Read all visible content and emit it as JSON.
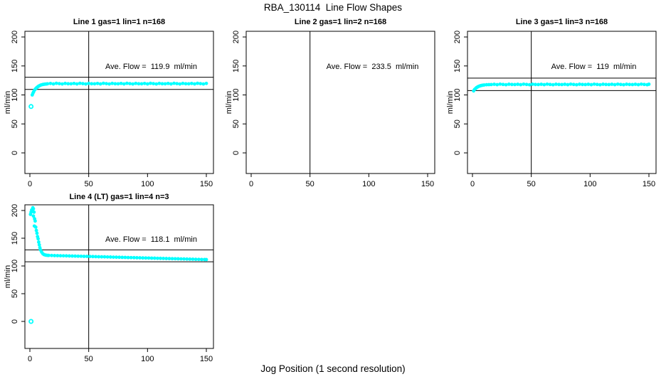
{
  "figure": {
    "main_title": "RBA_130114  Line Flow Shapes",
    "x_axis_label": "Jog Position (1 second resolution)",
    "background": "#ffffff"
  },
  "colors": {
    "points": "#00ffff",
    "axis": "#000000",
    "text": "#000000"
  },
  "chart_data": [
    {
      "type": "scatter",
      "title": "Line 1 gas=1 lin=1 n=168",
      "annotation": "Ave. Flow =  119.9  ml/min",
      "ave_flow": 119.9,
      "ylabel": "ml/min",
      "xlabel": "",
      "xticks": [
        0,
        50,
        100,
        150
      ],
      "yticks": [
        0,
        50,
        100,
        150,
        200
      ],
      "xlim": [
        -6,
        156
      ],
      "ylim": [
        -35,
        212
      ],
      "vline": 50,
      "hlines": [
        109.5,
        130.5
      ],
      "points": [
        [
          1,
          80
        ],
        [
          2,
          100
        ],
        [
          2.6,
          103
        ],
        [
          3.2,
          105.5
        ],
        [
          4,
          108.5
        ],
        [
          4.8,
          110.5
        ],
        [
          5.6,
          112.2
        ],
        [
          6.4,
          113.6
        ],
        [
          7.2,
          114.8
        ],
        [
          8,
          115.8
        ],
        [
          9,
          116.8
        ],
        [
          10,
          117.5
        ],
        [
          11,
          118
        ],
        [
          12,
          118.4
        ],
        [
          13,
          118.7
        ],
        [
          14,
          118.9
        ],
        [
          15,
          119.2
        ],
        [
          17.5,
          119.8
        ],
        [
          20,
          119.0
        ],
        [
          22.5,
          120.1
        ],
        [
          25,
          119.5
        ],
        [
          27.5,
          118.9
        ],
        [
          30,
          119.9
        ],
        [
          32.5,
          119.3
        ],
        [
          35,
          119.2
        ],
        [
          37.5,
          119.8
        ],
        [
          40,
          119.0
        ],
        [
          42.5,
          120.1
        ],
        [
          45,
          119.5
        ],
        [
          47.5,
          118.9
        ],
        [
          50,
          119.9
        ],
        [
          52.5,
          119.3
        ],
        [
          55,
          119.2
        ],
        [
          57.5,
          119.8
        ],
        [
          60,
          119.0
        ],
        [
          62.5,
          120.1
        ],
        [
          65,
          119.5
        ],
        [
          67.5,
          118.9
        ],
        [
          70,
          119.9
        ],
        [
          72.5,
          119.3
        ],
        [
          75,
          119.2
        ],
        [
          77.5,
          119.8
        ],
        [
          80,
          119.0
        ],
        [
          82.5,
          120.1
        ],
        [
          85,
          119.5
        ],
        [
          87.5,
          118.9
        ],
        [
          90,
          119.9
        ],
        [
          92.5,
          119.3
        ],
        [
          95,
          119.2
        ],
        [
          97.5,
          119.8
        ],
        [
          100,
          119.0
        ],
        [
          102.5,
          120.1
        ],
        [
          105,
          119.5
        ],
        [
          107.5,
          118.9
        ],
        [
          110,
          119.9
        ],
        [
          112.5,
          119.3
        ],
        [
          115,
          119.2
        ],
        [
          117.5,
          119.8
        ],
        [
          120,
          119.0
        ],
        [
          122.5,
          120.1
        ],
        [
          125,
          119.5
        ],
        [
          127.5,
          118.9
        ],
        [
          130,
          119.9
        ],
        [
          132.5,
          119.3
        ],
        [
          135,
          119.2
        ],
        [
          137.5,
          119.8
        ],
        [
          140,
          119.0
        ],
        [
          142.5,
          120.1
        ],
        [
          145,
          119.5
        ],
        [
          147.5,
          118.9
        ],
        [
          150,
          119.9
        ]
      ]
    },
    {
      "type": "scatter",
      "title": "Line 2 gas=1 lin=2 n=168",
      "annotation": "Ave. Flow =  233.5  ml/min",
      "ave_flow": 233.5,
      "ylabel": "ml/min",
      "xlabel": "",
      "xticks": [
        0,
        50,
        100,
        150
      ],
      "yticks": [
        0,
        50,
        100,
        150,
        200
      ],
      "xlim": [
        -6,
        156
      ],
      "ylim": [
        -35,
        212
      ],
      "vline": 50,
      "hlines": [],
      "points": []
    },
    {
      "type": "scatter",
      "title": "Line 3 gas=1 lin=3 n=168",
      "annotation": "Ave. Flow =  119  ml/min",
      "ave_flow": 119,
      "ylabel": "ml/min",
      "xlabel": "",
      "xticks": [
        0,
        50,
        100,
        150
      ],
      "yticks": [
        0,
        50,
        100,
        150,
        200
      ],
      "xlim": [
        -6,
        156
      ],
      "ylim": [
        -35,
        212
      ],
      "vline": 50,
      "hlines": [
        107.5,
        129
      ],
      "points": [
        [
          1,
          107
        ],
        [
          1.8,
          109.5
        ],
        [
          2.6,
          111
        ],
        [
          3.4,
          112.5
        ],
        [
          4.2,
          113.6
        ],
        [
          5,
          114.5
        ],
        [
          6,
          115.3
        ],
        [
          7,
          116
        ],
        [
          8,
          116.5
        ],
        [
          9,
          116.9
        ],
        [
          10,
          117.2
        ],
        [
          12,
          117.6
        ],
        [
          14,
          117.8
        ],
        [
          16,
          117.9
        ],
        [
          18.5,
          118.4
        ],
        [
          21,
          117.7
        ],
        [
          23.5,
          118.6
        ],
        [
          26,
          118.1
        ],
        [
          28.5,
          117.6
        ],
        [
          31,
          118.5
        ],
        [
          33.5,
          118.0
        ],
        [
          36,
          117.9
        ],
        [
          38.5,
          118.4
        ],
        [
          41,
          117.7
        ],
        [
          43.5,
          118.6
        ],
        [
          46,
          118.1
        ],
        [
          48.5,
          117.6
        ],
        [
          51,
          118.5
        ],
        [
          53.5,
          118.0
        ],
        [
          56,
          117.9
        ],
        [
          58.5,
          118.4
        ],
        [
          61,
          117.7
        ],
        [
          63.5,
          118.6
        ],
        [
          66,
          118.1
        ],
        [
          68.5,
          117.6
        ],
        [
          71,
          118.5
        ],
        [
          73.5,
          118.0
        ],
        [
          76,
          117.9
        ],
        [
          78.5,
          118.4
        ],
        [
          81,
          117.7
        ],
        [
          83.5,
          118.6
        ],
        [
          86,
          118.1
        ],
        [
          88.5,
          117.6
        ],
        [
          91,
          118.5
        ],
        [
          93.5,
          118.0
        ],
        [
          96,
          117.9
        ],
        [
          98.5,
          118.4
        ],
        [
          101,
          117.7
        ],
        [
          103.5,
          118.6
        ],
        [
          106,
          118.1
        ],
        [
          108.5,
          117.6
        ],
        [
          111,
          118.5
        ],
        [
          113.5,
          118.0
        ],
        [
          116,
          117.9
        ],
        [
          118.5,
          118.4
        ],
        [
          121,
          117.7
        ],
        [
          123.5,
          118.6
        ],
        [
          126,
          118.1
        ],
        [
          128.5,
          117.6
        ],
        [
          131,
          118.5
        ],
        [
          133.5,
          118.0
        ],
        [
          136,
          117.9
        ],
        [
          138.5,
          118.4
        ],
        [
          141,
          117.7
        ],
        [
          143.5,
          118.6
        ],
        [
          146,
          118.1
        ],
        [
          148.5,
          117.6
        ],
        [
          150,
          118.5
        ]
      ]
    },
    {
      "type": "scatter",
      "title": "Line 4 (LT) gas=1 lin=4 n=3",
      "annotation": "Ave. Flow =  118.1  ml/min",
      "ave_flow": 118.1,
      "ylabel": "ml/min",
      "xlabel": "",
      "xticks": [
        0,
        50,
        100,
        150
      ],
      "yticks": [
        0,
        50,
        100,
        150,
        200
      ],
      "xlim": [
        -6,
        156
      ],
      "ylim": [
        -35,
        212
      ],
      "vline": 50,
      "hlines": [
        107.5,
        129
      ],
      "points": [
        [
          1,
          0
        ],
        [
          0.5,
          193
        ],
        [
          1,
          197
        ],
        [
          1.5,
          201
        ],
        [
          2.5,
          205
        ],
        [
          3,
          203
        ],
        [
          2,
          199
        ],
        [
          3.5,
          197
        ],
        [
          3,
          190
        ],
        [
          4,
          185
        ],
        [
          4.5,
          181
        ],
        [
          3.8,
          172
        ],
        [
          5,
          170
        ],
        [
          5.5,
          164
        ],
        [
          6,
          159
        ],
        [
          6.5,
          153
        ],
        [
          7,
          149
        ],
        [
          7.5,
          143
        ],
        [
          8,
          138
        ],
        [
          8.5,
          133
        ],
        [
          9,
          129
        ],
        [
          10,
          125
        ],
        [
          11,
          122
        ],
        [
          12,
          120.5
        ],
        [
          13,
          119.8
        ],
        [
          14,
          119.4
        ],
        [
          15,
          119.1
        ],
        [
          16,
          119.0
        ],
        [
          18.5,
          118.9
        ],
        [
          21,
          118.7
        ],
        [
          23.5,
          118.6
        ],
        [
          26,
          118.4
        ],
        [
          28.5,
          118.3
        ],
        [
          31,
          118.2
        ],
        [
          33.5,
          118.0
        ],
        [
          36,
          117.9
        ],
        [
          38.5,
          117.8
        ],
        [
          41,
          117.6
        ],
        [
          43.5,
          117.5
        ],
        [
          46,
          117.3
        ],
        [
          48.5,
          117.2
        ],
        [
          51,
          117.1
        ],
        [
          53.5,
          116.9
        ],
        [
          56,
          116.8
        ],
        [
          58.5,
          116.6
        ],
        [
          61,
          116.5
        ],
        [
          63.5,
          116.4
        ],
        [
          66,
          116.2
        ],
        [
          68.5,
          116.1
        ],
        [
          71,
          115.9
        ],
        [
          73.5,
          115.8
        ],
        [
          76,
          115.7
        ],
        [
          78.5,
          115.5
        ],
        [
          81,
          115.4
        ],
        [
          83.5,
          115.2
        ],
        [
          86,
          115.1
        ],
        [
          88.5,
          115.0
        ],
        [
          91,
          114.8
        ],
        [
          93.5,
          114.7
        ],
        [
          96,
          114.5
        ],
        [
          98.5,
          114.4
        ],
        [
          101,
          114.3
        ],
        [
          103.5,
          114.1
        ],
        [
          106,
          114.0
        ],
        [
          108.5,
          113.8
        ],
        [
          111,
          113.7
        ],
        [
          113.5,
          113.6
        ],
        [
          116,
          113.4
        ],
        [
          118.5,
          113.3
        ],
        [
          121,
          113.1
        ],
        [
          123.5,
          113.0
        ],
        [
          126,
          112.9
        ],
        [
          128.5,
          112.7
        ],
        [
          131,
          112.6
        ],
        [
          133.5,
          112.4
        ],
        [
          136,
          112.3
        ],
        [
          138.5,
          112.2
        ],
        [
          141,
          112.0
        ],
        [
          143.5,
          111.9
        ],
        [
          146,
          111.7
        ],
        [
          148.5,
          111.6
        ],
        [
          150,
          111.5
        ]
      ]
    }
  ]
}
